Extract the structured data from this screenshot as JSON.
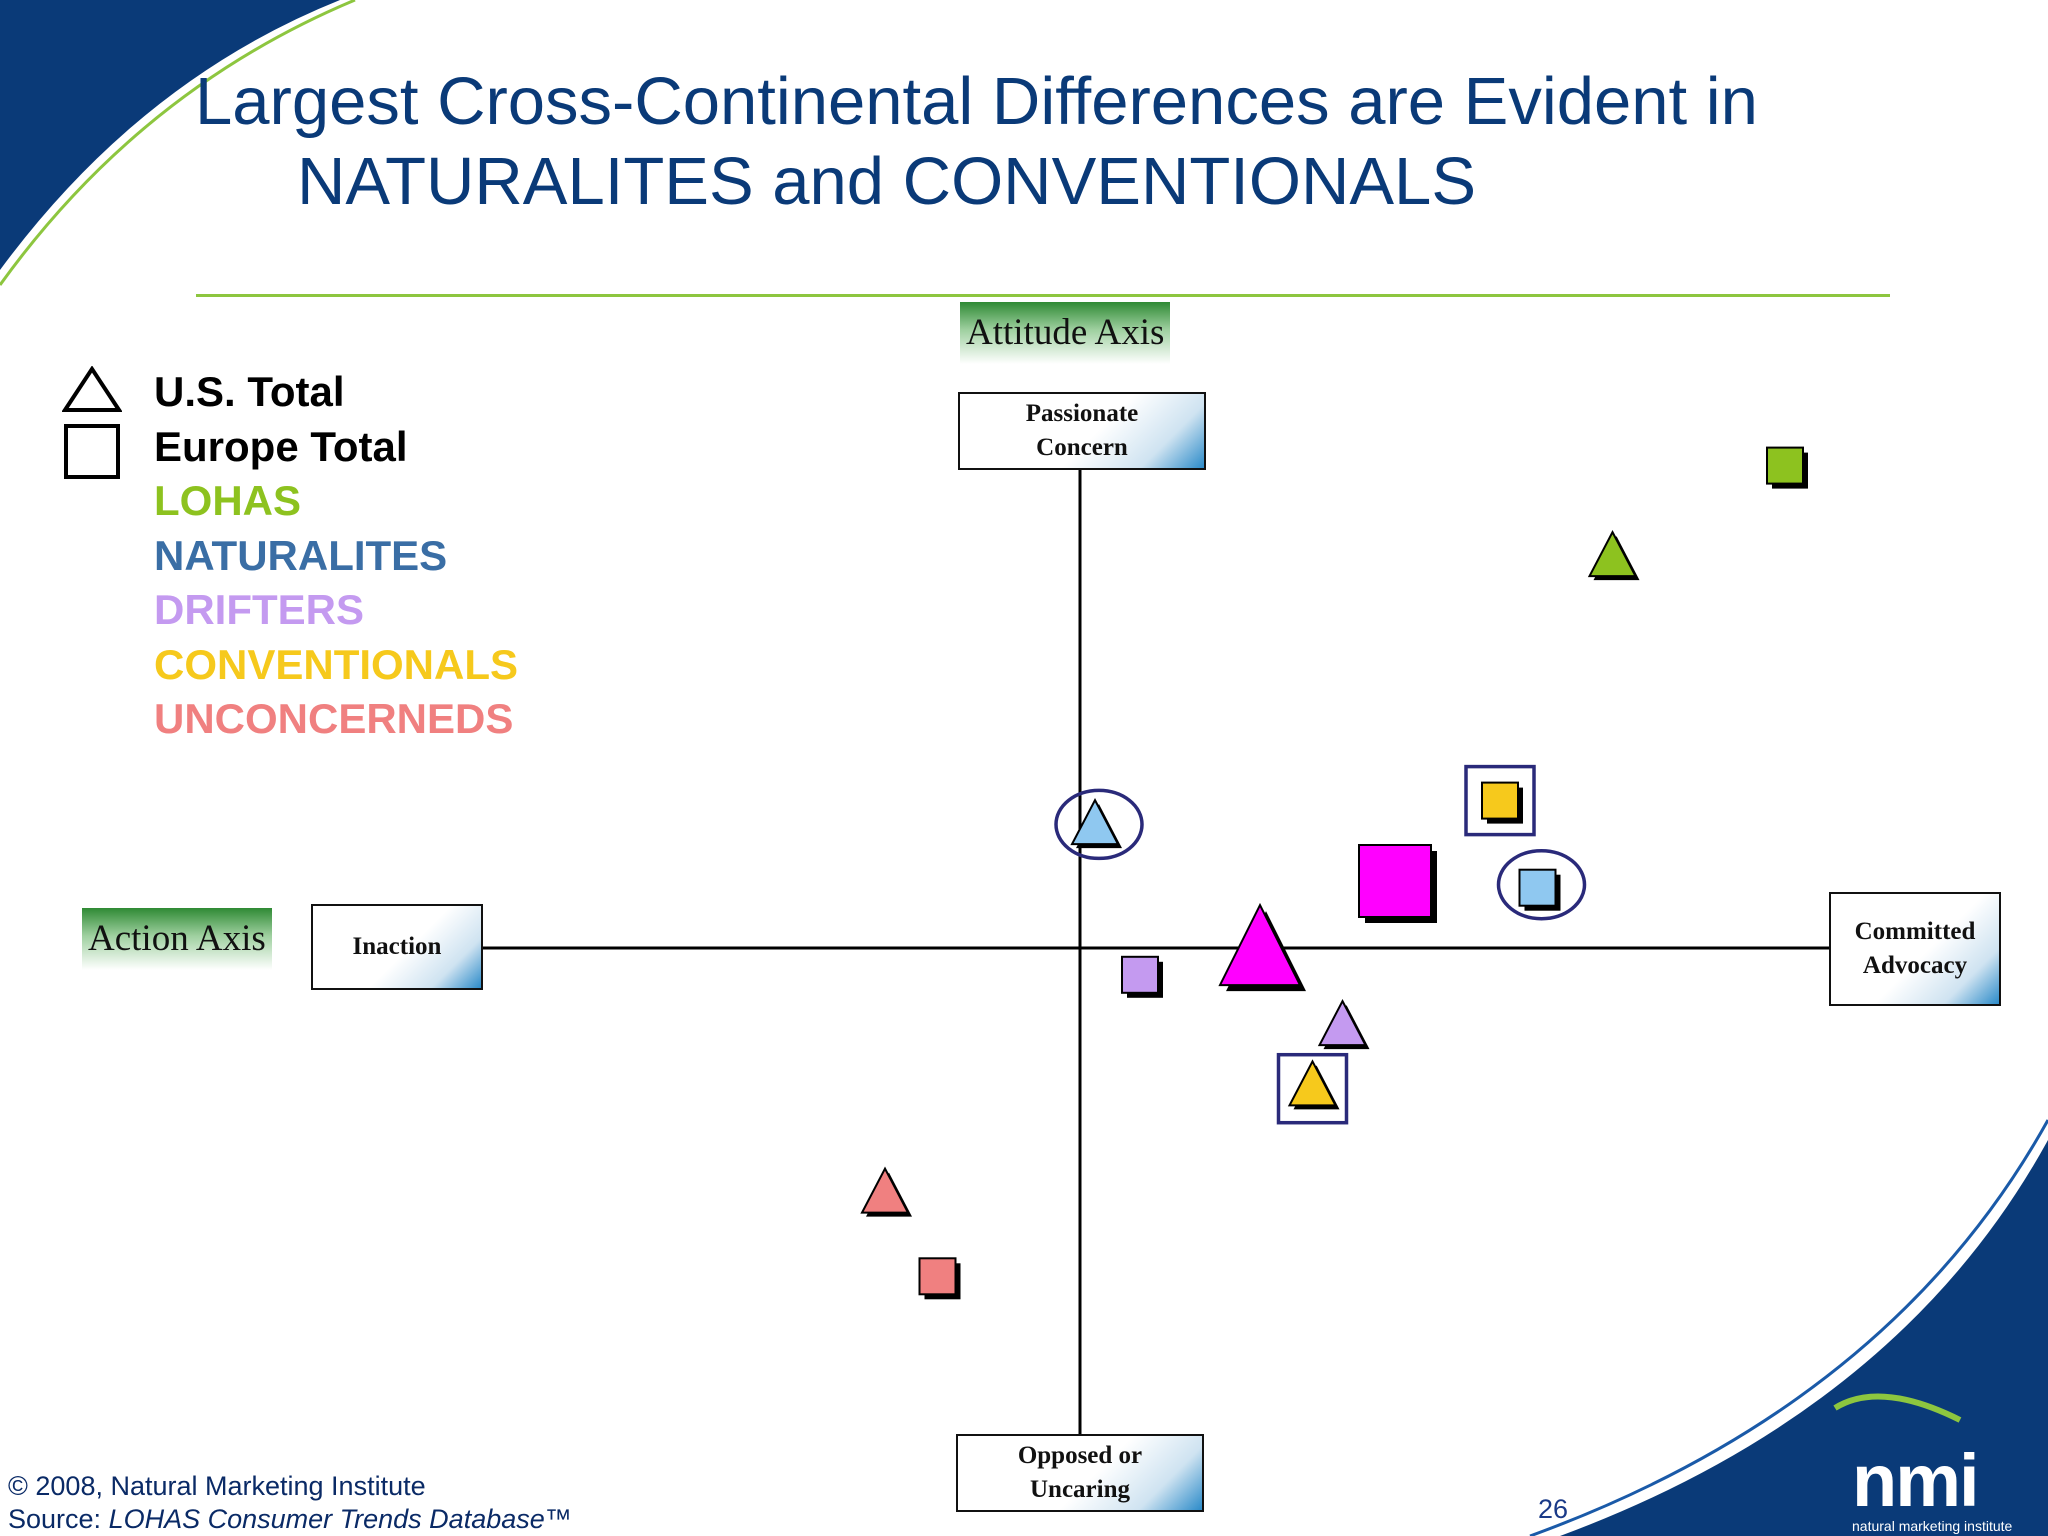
{
  "title": {
    "line1": "Largest Cross-Continental Differences are Evident in",
    "line2": "NATURALITES and CONVENTIONALS"
  },
  "legend": {
    "shapes": [
      {
        "shape": "triangle",
        "label": "U.S. Total"
      },
      {
        "shape": "square",
        "label": "Europe Total"
      }
    ],
    "segments": [
      {
        "label": "LOHAS",
        "color": "#8dc21f"
      },
      {
        "label": "NATURALITES",
        "color": "#3a6ea5"
      },
      {
        "label": "DRIFTERS",
        "color": "#c49af0"
      },
      {
        "label": "CONVENTIONALS",
        "color": "#f6c91c"
      },
      {
        "label": "UNCONCERNEDS",
        "color": "#f08080"
      }
    ]
  },
  "axes": {
    "attitude_title": "Attitude Axis",
    "action_title": "Action Axis",
    "top_pole": "Passionate\nConcern",
    "bottom_pole": "Opposed or\nUncaring",
    "left_pole": "Inaction",
    "right_pole": "Committed\nAdvocacy"
  },
  "chart_data": {
    "type": "scatter",
    "title": "Largest Cross-Continental Differences are Evident in NATURALITES and CONVENTIONALS",
    "xlabel": "Action Axis",
    "ylabel": "Attitude Axis",
    "xlim": [
      -1,
      1
    ],
    "ylim": [
      -1,
      1
    ],
    "grid": false,
    "legend_position": "top-left",
    "series": [
      {
        "name": "U.S. Total",
        "shape": "triangle",
        "points": [
          {
            "segment": "Total",
            "x": 0.24,
            "y": -0.01,
            "size": "large",
            "color": "#ff00ff"
          },
          {
            "segment": "LOHAS",
            "x": 0.71,
            "y": 0.58,
            "color": "#8dc21f"
          },
          {
            "segment": "NATURALITES",
            "x": 0.02,
            "y": 0.18,
            "color": "#8fc8f0",
            "highlight": "circle"
          },
          {
            "segment": "DRIFTERS",
            "x": 0.35,
            "y": -0.12,
            "color": "#c49af0"
          },
          {
            "segment": "CONVENTIONALS",
            "x": 0.31,
            "y": -0.21,
            "color": "#f6c91c",
            "highlight": "box"
          },
          {
            "segment": "UNCONCERNEDS",
            "x": -0.26,
            "y": -0.37,
            "color": "#f08080"
          }
        ]
      },
      {
        "name": "Europe Total",
        "shape": "square",
        "points": [
          {
            "segment": "Total",
            "x": 0.42,
            "y": 0.1,
            "size": "large",
            "color": "#ff00ff"
          },
          {
            "segment": "LOHAS",
            "x": 0.94,
            "y": 0.72,
            "color": "#8dc21f"
          },
          {
            "segment": "NATURALITES",
            "x": 0.61,
            "y": 0.09,
            "color": "#8fc8f0",
            "highlight": "circle"
          },
          {
            "segment": "DRIFTERS",
            "x": 0.08,
            "y": -0.04,
            "color": "#c49af0"
          },
          {
            "segment": "CONVENTIONALS",
            "x": 0.56,
            "y": 0.22,
            "color": "#f6c91c",
            "highlight": "box"
          },
          {
            "segment": "UNCONCERNEDS",
            "x": -0.19,
            "y": -0.49,
            "color": "#f08080"
          }
        ]
      }
    ]
  },
  "footer": {
    "copyright": "© 2008, Natural Marketing Institute",
    "source_prefix": "Source: ",
    "source_title": "LOHAS Consumer Trends Database™"
  },
  "page_number": "26",
  "logo": {
    "mark": "nmi",
    "name": "natural marketing institute"
  },
  "colors": {
    "title": "#0a3a78",
    "accent_green": "#8dc63f",
    "brand_blue": "#0a3a78",
    "highlight": "#2a2a7a"
  }
}
